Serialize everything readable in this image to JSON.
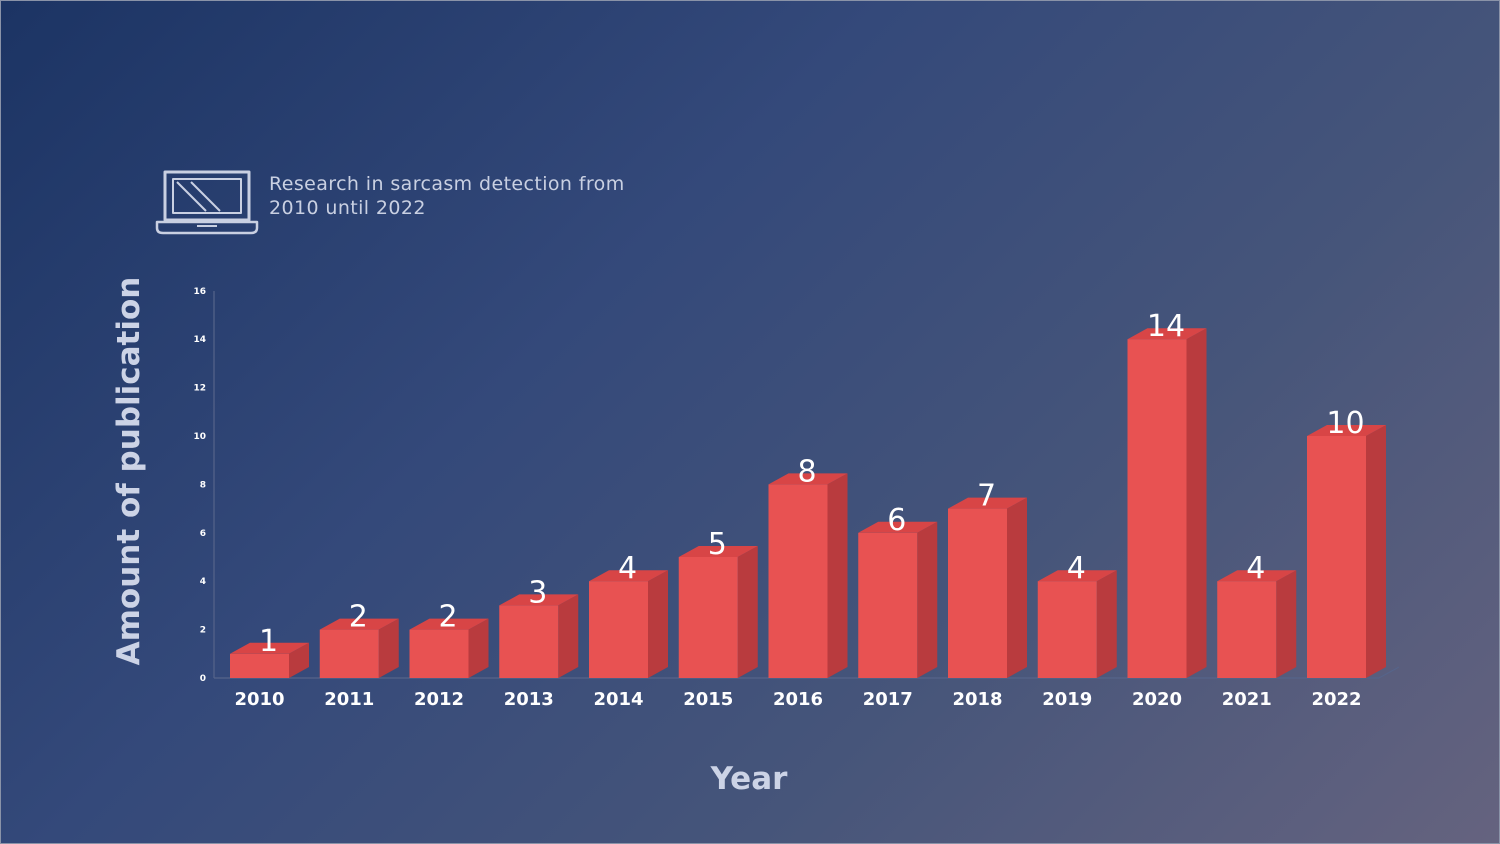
{
  "chart_data": {
    "type": "bar",
    "title_lines": [
      "Research in sarcasm detection from",
      "2010 until 2022"
    ],
    "xlabel": "Year",
    "ylabel": "Amount of publication",
    "categories": [
      "2010",
      "2011",
      "2012",
      "2013",
      "2014",
      "2015",
      "2016",
      "2017",
      "2018",
      "2019",
      "2020",
      "2021",
      "2022"
    ],
    "values": [
      1,
      2,
      2,
      3,
      4,
      5,
      8,
      6,
      7,
      4,
      14,
      4,
      10
    ],
    "yticks": [
      "0",
      "2",
      "4",
      "6",
      "8",
      "10",
      "12",
      "14",
      "16"
    ],
    "ylim": [
      0,
      16
    ],
    "grid": false,
    "legend": "none",
    "style": "3d-bar",
    "colors": {
      "bar_front": "#e85252",
      "bar_side": "#b93b3e",
      "bar_top": "#d84546"
    },
    "title_icon": "laptop-icon"
  }
}
